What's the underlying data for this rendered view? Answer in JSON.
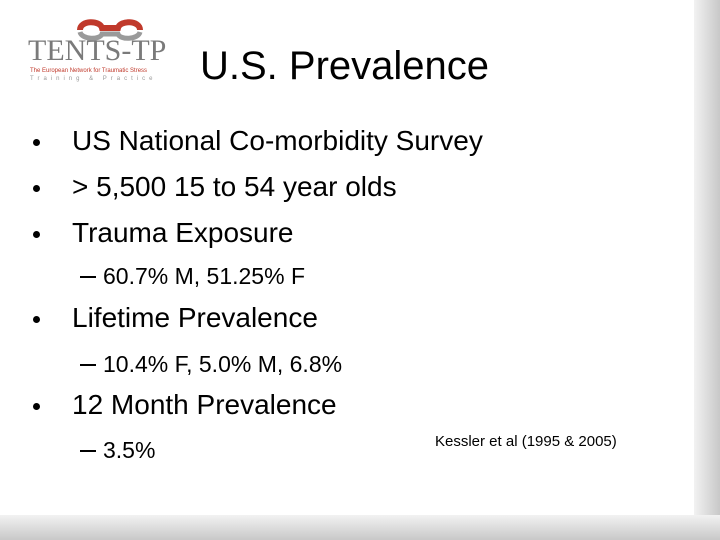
{
  "logo": {
    "name": "TENTS-TP",
    "tagline": "The European Network for Traumatic Stress",
    "subtitle": "Training & Practice"
  },
  "title": "U.S. Prevalence",
  "bullets": [
    {
      "text": "US National Co-morbidity Survey"
    },
    {
      "text": "> 5,500 15 to 54 year olds"
    },
    {
      "text": "Trauma Exposure",
      "sub": [
        "60.7% M, 51.25% F"
      ]
    },
    {
      "text": "Lifetime Prevalence",
      "sub": [
        "10.4% F, 5.0% M, 6.8%"
      ]
    },
    {
      "text": "12 Month Prevalence",
      "sub": [
        "3.5%"
      ]
    }
  ],
  "citation": "Kessler et al (1995 & 2005)"
}
